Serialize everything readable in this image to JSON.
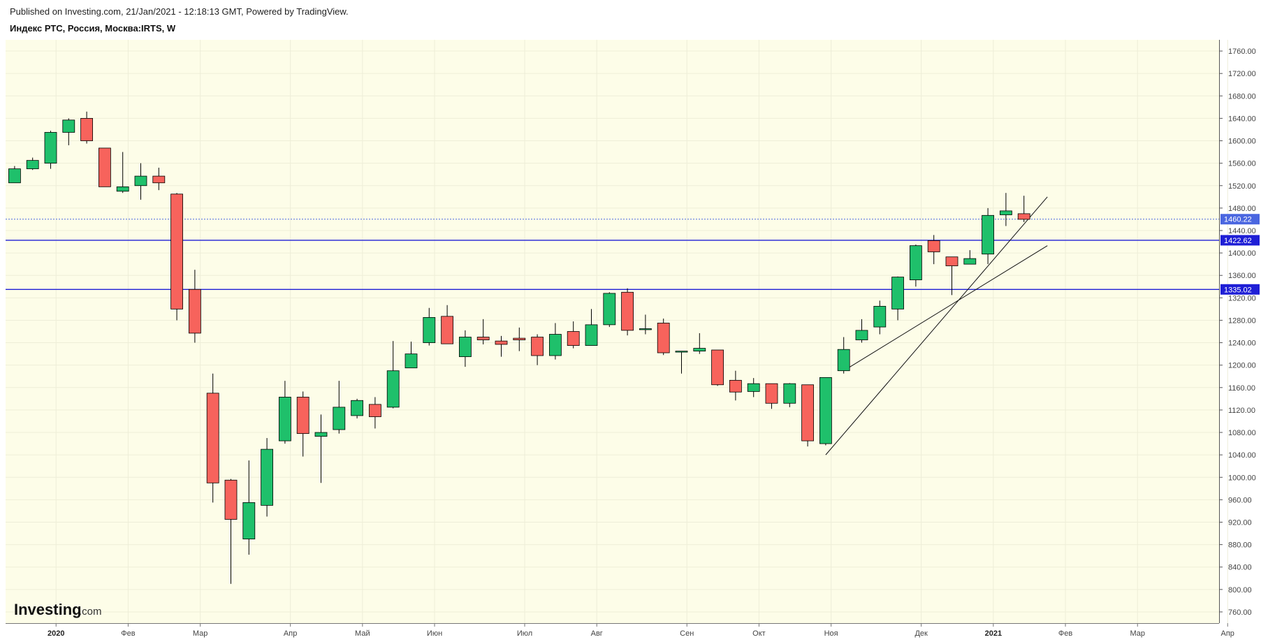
{
  "header": {
    "published": "Published on Investing.com, 21/Jan/2021 - 12:18:13 GMT, Powered by TradingView.",
    "instrument": "Индекс РТС, Россия, Москва:IRTS, W"
  },
  "watermark": {
    "brand": "Investing",
    "suffix": ".com"
  },
  "colors": {
    "background": "#fdfde8",
    "up": "#1fc06b",
    "down": "#f7635c",
    "wick": "#000000",
    "level_line": "#1f1fd6",
    "last_price": "#4a66e0"
  },
  "chart_data": {
    "type": "candlestick",
    "interval": "W",
    "ylim": [
      740,
      1780
    ],
    "y_ticks": [
      "760.00",
      "800.00",
      "840.00",
      "880.00",
      "920.00",
      "960.00",
      "1000.00",
      "1040.00",
      "1080.00",
      "1120.00",
      "1160.00",
      "1200.00",
      "1240.00",
      "1280.00",
      "1320.00",
      "1360.00",
      "1400.00",
      "1440.00",
      "1480.00",
      "1520.00",
      "1560.00",
      "1600.00",
      "1640.00",
      "1680.00",
      "1720.00",
      "1760.00"
    ],
    "x_ticks": [
      {
        "label": "2020",
        "week": 2.3,
        "bold": true
      },
      {
        "label": "Фев",
        "week": 6.3
      },
      {
        "label": "Мар",
        "week": 10.3
      },
      {
        "label": "Апр",
        "week": 15.3
      },
      {
        "label": "Май",
        "week": 19.3
      },
      {
        "label": "Июн",
        "week": 23.3
      },
      {
        "label": "Июл",
        "week": 28.3
      },
      {
        "label": "Авг",
        "week": 32.3
      },
      {
        "label": "Сен",
        "week": 37.3
      },
      {
        "label": "Окт",
        "week": 41.3
      },
      {
        "label": "Ноя",
        "week": 45.3
      },
      {
        "label": "Дек",
        "week": 50.3
      },
      {
        "label": "2021",
        "week": 54.3,
        "bold": true
      },
      {
        "label": "Фев",
        "week": 58.3
      },
      {
        "label": "Мар",
        "week": 62.3
      },
      {
        "label": "Апр",
        "week": 67.3
      }
    ],
    "candles": [
      {
        "o": 1525,
        "h": 1555,
        "l": 1525,
        "c": 1550
      },
      {
        "o": 1550,
        "h": 1570,
        "l": 1548,
        "c": 1565
      },
      {
        "o": 1560,
        "h": 1618,
        "l": 1550,
        "c": 1615
      },
      {
        "o": 1615,
        "h": 1640,
        "l": 1592,
        "c": 1637
      },
      {
        "o": 1640,
        "h": 1652,
        "l": 1595,
        "c": 1600
      },
      {
        "o": 1587,
        "h": 1587,
        "l": 1518,
        "c": 1518
      },
      {
        "o": 1510,
        "h": 1580,
        "l": 1507,
        "c": 1518
      },
      {
        "o": 1520,
        "h": 1560,
        "l": 1495,
        "c": 1537
      },
      {
        "o": 1537,
        "h": 1552,
        "l": 1512,
        "c": 1525
      },
      {
        "o": 1505,
        "h": 1507,
        "l": 1280,
        "c": 1300
      },
      {
        "o": 1335,
        "h": 1370,
        "l": 1240,
        "c": 1257
      },
      {
        "o": 1150,
        "h": 1185,
        "l": 955,
        "c": 990
      },
      {
        "o": 995,
        "h": 997,
        "l": 810,
        "c": 925
      },
      {
        "o": 890,
        "h": 1030,
        "l": 862,
        "c": 955
      },
      {
        "o": 950,
        "h": 1070,
        "l": 930,
        "c": 1050
      },
      {
        "o": 1065,
        "h": 1172,
        "l": 1060,
        "c": 1143
      },
      {
        "o": 1143,
        "h": 1153,
        "l": 1037,
        "c": 1078
      },
      {
        "o": 1073,
        "h": 1112,
        "l": 990,
        "c": 1080
      },
      {
        "o": 1085,
        "h": 1172,
        "l": 1078,
        "c": 1125
      },
      {
        "o": 1110,
        "h": 1140,
        "l": 1105,
        "c": 1137
      },
      {
        "o": 1130,
        "h": 1143,
        "l": 1087,
        "c": 1108
      },
      {
        "o": 1125,
        "h": 1243,
        "l": 1123,
        "c": 1190
      },
      {
        "o": 1195,
        "h": 1242,
        "l": 1195,
        "c": 1220
      },
      {
        "o": 1240,
        "h": 1302,
        "l": 1235,
        "c": 1285
      },
      {
        "o": 1287,
        "h": 1307,
        "l": 1238,
        "c": 1238
      },
      {
        "o": 1215,
        "h": 1262,
        "l": 1197,
        "c": 1250
      },
      {
        "o": 1250,
        "h": 1282,
        "l": 1237,
        "c": 1245
      },
      {
        "o": 1243,
        "h": 1252,
        "l": 1215,
        "c": 1237
      },
      {
        "o": 1248,
        "h": 1267,
        "l": 1225,
        "c": 1245
      },
      {
        "o": 1250,
        "h": 1255,
        "l": 1200,
        "c": 1217
      },
      {
        "o": 1217,
        "h": 1275,
        "l": 1210,
        "c": 1255
      },
      {
        "o": 1260,
        "h": 1278,
        "l": 1230,
        "c": 1235
      },
      {
        "o": 1235,
        "h": 1300,
        "l": 1235,
        "c": 1272
      },
      {
        "o": 1272,
        "h": 1330,
        "l": 1268,
        "c": 1328
      },
      {
        "o": 1330,
        "h": 1337,
        "l": 1253,
        "c": 1262
      },
      {
        "o": 1265,
        "h": 1290,
        "l": 1255,
        "c": 1265
      },
      {
        "o": 1275,
        "h": 1283,
        "l": 1218,
        "c": 1222
      },
      {
        "o": 1225,
        "h": 1225,
        "l": 1185,
        "c": 1225
      },
      {
        "o": 1225,
        "h": 1257,
        "l": 1220,
        "c": 1230
      },
      {
        "o": 1227,
        "h": 1227,
        "l": 1163,
        "c": 1165
      },
      {
        "o": 1173,
        "h": 1190,
        "l": 1137,
        "c": 1152
      },
      {
        "o": 1153,
        "h": 1177,
        "l": 1143,
        "c": 1167
      },
      {
        "o": 1167,
        "h": 1167,
        "l": 1122,
        "c": 1132
      },
      {
        "o": 1132,
        "h": 1168,
        "l": 1125,
        "c": 1167
      },
      {
        "o": 1165,
        "h": 1165,
        "l": 1055,
        "c": 1065
      },
      {
        "o": 1060,
        "h": 1178,
        "l": 1057,
        "c": 1178
      },
      {
        "o": 1190,
        "h": 1250,
        "l": 1185,
        "c": 1228
      },
      {
        "o": 1245,
        "h": 1282,
        "l": 1240,
        "c": 1262
      },
      {
        "o": 1268,
        "h": 1315,
        "l": 1255,
        "c": 1305
      },
      {
        "o": 1300,
        "h": 1358,
        "l": 1280,
        "c": 1357
      },
      {
        "o": 1352,
        "h": 1415,
        "l": 1340,
        "c": 1413
      },
      {
        "o": 1422,
        "h": 1432,
        "l": 1380,
        "c": 1402
      },
      {
        "o": 1393,
        "h": 1393,
        "l": 1325,
        "c": 1377
      },
      {
        "o": 1380,
        "h": 1405,
        "l": 1380,
        "c": 1390
      },
      {
        "o": 1398,
        "h": 1480,
        "l": 1380,
        "c": 1467
      },
      {
        "o": 1468,
        "h": 1507,
        "l": 1448,
        "c": 1475
      },
      {
        "o": 1470,
        "h": 1502,
        "l": 1455,
        "c": 1460
      }
    ],
    "horizontal_levels": [
      {
        "value": 1422.62,
        "label": "1422.62"
      },
      {
        "value": 1335.02,
        "label": "1335.02"
      }
    ],
    "last_price": {
      "value": 1460.22,
      "label": "1460.22"
    },
    "trendlines": [
      {
        "from": {
          "week": 45.0,
          "price": 1040
        },
        "to": {
          "week": 57.3,
          "price": 1500
        }
      },
      {
        "from": {
          "week": 46.0,
          "price": 1190
        },
        "to": {
          "week": 57.3,
          "price": 1413
        }
      }
    ]
  }
}
